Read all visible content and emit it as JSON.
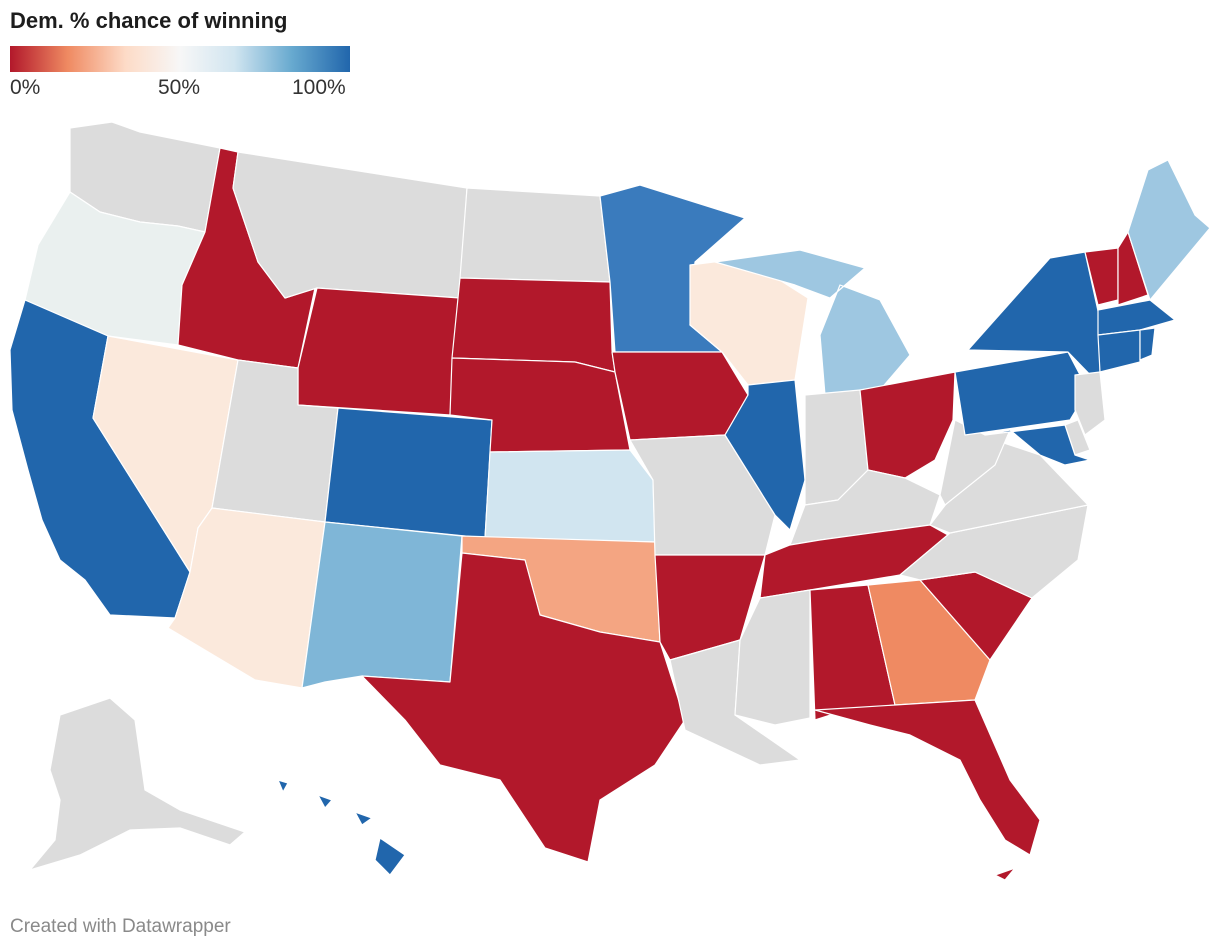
{
  "title": "Dem. % chance of winning",
  "legend": {
    "labels": [
      "0%",
      "50%",
      "100%"
    ],
    "stops": [
      "#b2182b",
      "#ef8a62",
      "#fddbc7",
      "#f7f7f7",
      "#d1e5f0",
      "#67a9cf",
      "#2166ac"
    ]
  },
  "credit": "Created with Datawrapper",
  "colors": {
    "no_data": "#dcdcdc",
    "safe_r": "#b2182b",
    "likely_r": "#ef8a62",
    "lean_r": "#f4a582",
    "tilt_r": "#fbe9dc",
    "tossup": "#eaf0ef",
    "tilt_d": "#d1e5f0",
    "lean_d": "#9ec7e1",
    "likely_d": "#7fb6d7",
    "strong_d": "#3a7bbd",
    "safe_d": "#2166ac"
  },
  "states": [
    {
      "name": "Washington",
      "category": "no_data"
    },
    {
      "name": "Oregon",
      "category": "tossup"
    },
    {
      "name": "California",
      "category": "safe_d"
    },
    {
      "name": "Nevada",
      "category": "tilt_r"
    },
    {
      "name": "Idaho",
      "category": "safe_r"
    },
    {
      "name": "Montana",
      "category": "no_data"
    },
    {
      "name": "Wyoming",
      "category": "safe_r"
    },
    {
      "name": "Utah",
      "category": "no_data"
    },
    {
      "name": "Arizona",
      "category": "tilt_r"
    },
    {
      "name": "Colorado",
      "category": "safe_d"
    },
    {
      "name": "New Mexico",
      "category": "likely_d"
    },
    {
      "name": "North Dakota",
      "category": "no_data"
    },
    {
      "name": "South Dakota",
      "category": "safe_r"
    },
    {
      "name": "Nebraska",
      "category": "safe_r"
    },
    {
      "name": "Kansas",
      "category": "tilt_d"
    },
    {
      "name": "Oklahoma",
      "category": "lean_r"
    },
    {
      "name": "Texas",
      "category": "safe_r"
    },
    {
      "name": "Minnesota",
      "category": "strong_d"
    },
    {
      "name": "Iowa",
      "category": "safe_r"
    },
    {
      "name": "Missouri",
      "category": "no_data"
    },
    {
      "name": "Arkansas",
      "category": "safe_r"
    },
    {
      "name": "Louisiana",
      "category": "no_data"
    },
    {
      "name": "Wisconsin",
      "category": "tilt_r"
    },
    {
      "name": "Illinois",
      "category": "safe_d"
    },
    {
      "name": "Michigan",
      "category": "lean_d"
    },
    {
      "name": "Indiana",
      "category": "no_data"
    },
    {
      "name": "Ohio",
      "category": "safe_r"
    },
    {
      "name": "Kentucky",
      "category": "no_data"
    },
    {
      "name": "Tennessee",
      "category": "safe_r"
    },
    {
      "name": "Mississippi",
      "category": "no_data"
    },
    {
      "name": "Alabama",
      "category": "safe_r"
    },
    {
      "name": "Georgia",
      "category": "likely_r"
    },
    {
      "name": "Florida",
      "category": "safe_r"
    },
    {
      "name": "South Carolina",
      "category": "safe_r"
    },
    {
      "name": "North Carolina",
      "category": "no_data"
    },
    {
      "name": "Virginia",
      "category": "no_data"
    },
    {
      "name": "West Virginia",
      "category": "no_data"
    },
    {
      "name": "Pennsylvania",
      "category": "safe_d"
    },
    {
      "name": "New York",
      "category": "safe_d"
    },
    {
      "name": "Vermont",
      "category": "safe_r"
    },
    {
      "name": "New Hampshire",
      "category": "safe_r"
    },
    {
      "name": "Maine",
      "category": "lean_d"
    },
    {
      "name": "Massachusetts",
      "category": "safe_d"
    },
    {
      "name": "Connecticut",
      "category": "safe_d"
    },
    {
      "name": "Rhode Island",
      "category": "safe_d"
    },
    {
      "name": "New Jersey",
      "category": "no_data"
    },
    {
      "name": "Delaware",
      "category": "no_data"
    },
    {
      "name": "Maryland",
      "category": "safe_d"
    },
    {
      "name": "Alaska",
      "category": "no_data"
    },
    {
      "name": "Hawaii",
      "category": "safe_d"
    }
  ]
}
